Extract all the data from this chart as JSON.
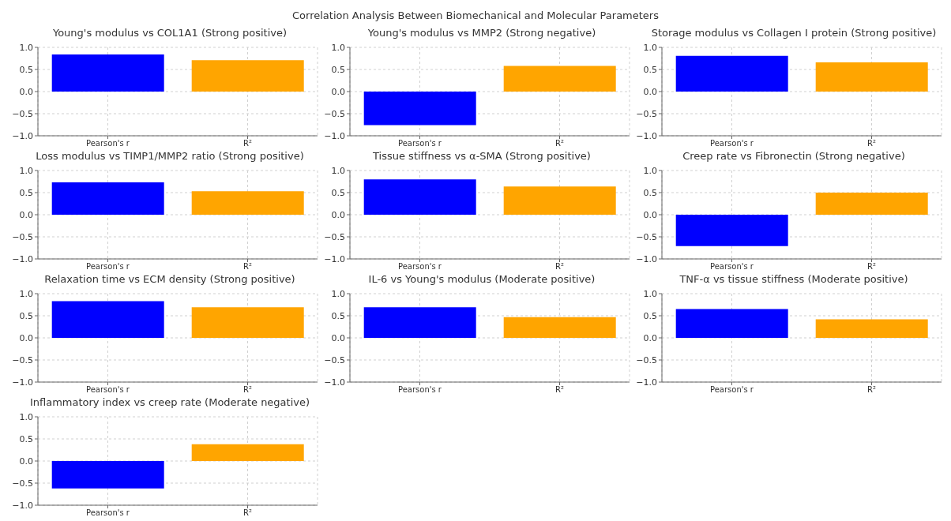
{
  "chart_data": [
    {
      "type": "bar",
      "title": "Young's modulus vs COL1A1 (Strong positive)",
      "annotations": [
        "Correlation Analysis Between Biomechanical and Molecular Parameters"
      ],
      "categories": [
        "Pearson's r",
        "R²"
      ],
      "values": [
        0.84,
        0.71
      ],
      "colors": [
        "#0000ff",
        "#ffa500"
      ],
      "ylim": [
        -1,
        1
      ],
      "yticks": [
        {
          "value": -1,
          "label": "−1.0"
        },
        {
          "value": -0.5,
          "label": "−0.5"
        },
        {
          "value": 0,
          "label": "0.0"
        },
        {
          "value": 0.5,
          "label": "0.5"
        },
        {
          "value": 1,
          "label": "1.0"
        }
      ],
      "grid": true
    },
    {
      "type": "bar",
      "title": "Young's modulus vs MMP2 (Strong negative)",
      "categories": [
        "Pearson's r",
        "R²"
      ],
      "values": [
        -0.76,
        0.58
      ],
      "colors": [
        "#0000ff",
        "#ffa500"
      ],
      "ylim": [
        -1,
        1
      ],
      "yticks": [
        {
          "value": -1,
          "label": "−1.0"
        },
        {
          "value": -0.5,
          "label": "−0.5"
        },
        {
          "value": 0,
          "label": "0.0"
        },
        {
          "value": 0.5,
          "label": "0.5"
        },
        {
          "value": 1,
          "label": "1.0"
        }
      ],
      "grid": true
    },
    {
      "type": "bar",
      "title": "Storage modulus vs Collagen I protein (Strong positive)",
      "categories": [
        "Pearson's r",
        "R²"
      ],
      "values": [
        0.81,
        0.66
      ],
      "colors": [
        "#0000ff",
        "#ffa500"
      ],
      "ylim": [
        -1,
        1
      ],
      "yticks": [
        {
          "value": -1,
          "label": "−1.0"
        },
        {
          "value": -0.5,
          "label": "−0.5"
        },
        {
          "value": 0,
          "label": "0.0"
        },
        {
          "value": 0.5,
          "label": "0.5"
        },
        {
          "value": 1,
          "label": "1.0"
        }
      ],
      "grid": true
    },
    {
      "type": "bar",
      "title": "Loss modulus vs TIMP1/MMP2 ratio (Strong positive)",
      "categories": [
        "Pearson's r",
        "R²"
      ],
      "values": [
        0.73,
        0.53
      ],
      "colors": [
        "#0000ff",
        "#ffa500"
      ],
      "ylim": [
        -1,
        1
      ],
      "yticks": [
        {
          "value": -1,
          "label": "−1.0"
        },
        {
          "value": -0.5,
          "label": "−0.5"
        },
        {
          "value": 0,
          "label": "0.0"
        },
        {
          "value": 0.5,
          "label": "0.5"
        },
        {
          "value": 1,
          "label": "1.0"
        }
      ],
      "grid": true
    },
    {
      "type": "bar",
      "title": "Tissue stiffness vs α-SMA (Strong positive)",
      "categories": [
        "Pearson's r",
        "R²"
      ],
      "values": [
        0.8,
        0.64
      ],
      "colors": [
        "#0000ff",
        "#ffa500"
      ],
      "ylim": [
        -1,
        1
      ],
      "yticks": [
        {
          "value": -1,
          "label": "−1.0"
        },
        {
          "value": -0.5,
          "label": "−0.5"
        },
        {
          "value": 0,
          "label": "0.0"
        },
        {
          "value": 0.5,
          "label": "0.5"
        },
        {
          "value": 1,
          "label": "1.0"
        }
      ],
      "grid": true
    },
    {
      "type": "bar",
      "title": "Creep rate vs Fibronectin (Strong negative)",
      "categories": [
        "Pearson's r",
        "R²"
      ],
      "values": [
        -0.71,
        0.5
      ],
      "colors": [
        "#0000ff",
        "#ffa500"
      ],
      "ylim": [
        -1,
        1
      ],
      "yticks": [
        {
          "value": -1,
          "label": "−1.0"
        },
        {
          "value": -0.5,
          "label": "−0.5"
        },
        {
          "value": 0,
          "label": "0.0"
        },
        {
          "value": 0.5,
          "label": "0.5"
        },
        {
          "value": 1,
          "label": "1.0"
        }
      ],
      "grid": true
    },
    {
      "type": "bar",
      "title": "Relaxation time vs ECM density (Strong positive)",
      "categories": [
        "Pearson's r",
        "R²"
      ],
      "values": [
        0.83,
        0.69
      ],
      "colors": [
        "#0000ff",
        "#ffa500"
      ],
      "ylim": [
        -1,
        1
      ],
      "yticks": [
        {
          "value": -1,
          "label": "−1.0"
        },
        {
          "value": -0.5,
          "label": "−0.5"
        },
        {
          "value": 0,
          "label": "0.0"
        },
        {
          "value": 0.5,
          "label": "0.5"
        },
        {
          "value": 1,
          "label": "1.0"
        }
      ],
      "grid": true
    },
    {
      "type": "bar",
      "title": "IL-6 vs Young's modulus (Moderate positive)",
      "categories": [
        "Pearson's r",
        "R²"
      ],
      "values": [
        0.69,
        0.47
      ],
      "colors": [
        "#0000ff",
        "#ffa500"
      ],
      "ylim": [
        -1,
        1
      ],
      "yticks": [
        {
          "value": -1,
          "label": "−1.0"
        },
        {
          "value": -0.5,
          "label": "−0.5"
        },
        {
          "value": 0,
          "label": "0.0"
        },
        {
          "value": 0.5,
          "label": "0.5"
        },
        {
          "value": 1,
          "label": "1.0"
        }
      ],
      "grid": true
    },
    {
      "type": "bar",
      "title": "TNF-α vs tissue stiffness (Moderate positive)",
      "categories": [
        "Pearson's r",
        "R²"
      ],
      "values": [
        0.65,
        0.42
      ],
      "colors": [
        "#0000ff",
        "#ffa500"
      ],
      "ylim": [
        -1,
        1
      ],
      "yticks": [
        {
          "value": -1,
          "label": "−1.0"
        },
        {
          "value": -0.5,
          "label": "−0.5"
        },
        {
          "value": 0,
          "label": "0.0"
        },
        {
          "value": 0.5,
          "label": "0.5"
        },
        {
          "value": 1,
          "label": "1.0"
        }
      ],
      "grid": true
    },
    {
      "type": "bar",
      "title": "Inflammatory index vs creep rate (Moderate negative)",
      "categories": [
        "Pearson's r",
        "R²"
      ],
      "values": [
        -0.62,
        0.38
      ],
      "colors": [
        "#0000ff",
        "#ffa500"
      ],
      "ylim": [
        -1,
        1
      ],
      "yticks": [
        {
          "value": -1,
          "label": "−1.0"
        },
        {
          "value": -0.5,
          "label": "−0.5"
        },
        {
          "value": 0,
          "label": "0.0"
        },
        {
          "value": 0.5,
          "label": "0.5"
        },
        {
          "value": 1,
          "label": "1.0"
        }
      ],
      "grid": true
    }
  ]
}
